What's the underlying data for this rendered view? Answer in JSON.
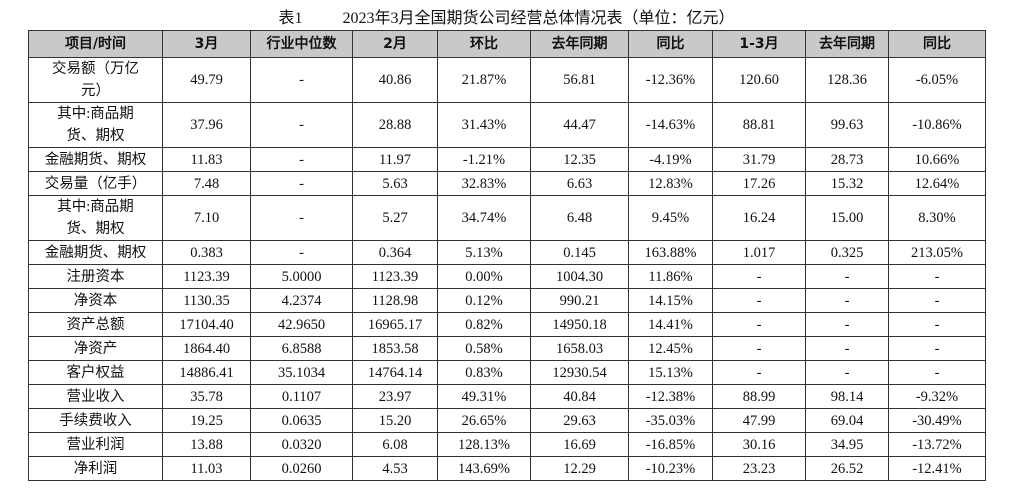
{
  "title": {
    "label": "表1",
    "text": "2023年3月全国期货公司经营总体情况表（单位：亿元）"
  },
  "table": {
    "header": [
      "项目/时间",
      "3月",
      "行业中位数",
      "2月",
      "环比",
      "去年同期",
      "同比",
      "1-3月",
      "去年同期",
      "同比"
    ],
    "rows": [
      [
        "交易额（万亿元）",
        "49.79",
        "-",
        "40.86",
        "21.87%",
        "56.81",
        "-12.36%",
        "120.60",
        "128.36",
        "-6.05%"
      ],
      [
        "其中:商品期货、期权",
        "37.96",
        "-",
        "28.88",
        "31.43%",
        "44.47",
        "-14.63%",
        "88.81",
        "99.63",
        "-10.86%"
      ],
      [
        "金融期货、期权",
        "11.83",
        "-",
        "11.97",
        "-1.21%",
        "12.35",
        "-4.19%",
        "31.79",
        "28.73",
        "10.66%"
      ],
      [
        "交易量（亿手）",
        "7.48",
        "-",
        "5.63",
        "32.83%",
        "6.63",
        "12.83%",
        "17.26",
        "15.32",
        "12.64%"
      ],
      [
        "其中:商品期货、期权",
        "7.10",
        "-",
        "5.27",
        "34.74%",
        "6.48",
        "9.45%",
        "16.24",
        "15.00",
        "8.30%"
      ],
      [
        "金融期货、期权",
        "0.383",
        "-",
        "0.364",
        "5.13%",
        "0.145",
        "163.88%",
        "1.017",
        "0.325",
        "213.05%"
      ],
      [
        "注册资本",
        "1123.39",
        "5.0000",
        "1123.39",
        "0.00%",
        "1004.30",
        "11.86%",
        "-",
        "-",
        "-"
      ],
      [
        "净资本",
        "1130.35",
        "4.2374",
        "1128.98",
        "0.12%",
        "990.21",
        "14.15%",
        "-",
        "-",
        "-"
      ],
      [
        "资产总额",
        "17104.40",
        "42.9650",
        "16965.17",
        "0.82%",
        "14950.18",
        "14.41%",
        "-",
        "-",
        "-"
      ],
      [
        "净资产",
        "1864.40",
        "6.8588",
        "1853.58",
        "0.58%",
        "1658.03",
        "12.45%",
        "-",
        "-",
        "-"
      ],
      [
        "客户权益",
        "14886.41",
        "35.1034",
        "14764.14",
        "0.83%",
        "12930.54",
        "15.13%",
        "-",
        "-",
        "-"
      ],
      [
        "营业收入",
        "35.78",
        "0.1107",
        "23.97",
        "49.31%",
        "40.84",
        "-12.38%",
        "88.99",
        "98.14",
        "-9.32%"
      ],
      [
        "手续费收入",
        "19.25",
        "0.0635",
        "15.20",
        "26.65%",
        "29.63",
        "-35.03%",
        "47.99",
        "69.04",
        "-30.49%"
      ],
      [
        "营业利润",
        "13.88",
        "0.0320",
        "6.08",
        "128.13%",
        "16.69",
        "-16.85%",
        "30.16",
        "34.95",
        "-13.72%"
      ],
      [
        "净利润",
        "11.03",
        "0.0260",
        "4.53",
        "143.69%",
        "12.29",
        "-10.23%",
        "23.23",
        "26.52",
        "-12.41%"
      ]
    ]
  }
}
